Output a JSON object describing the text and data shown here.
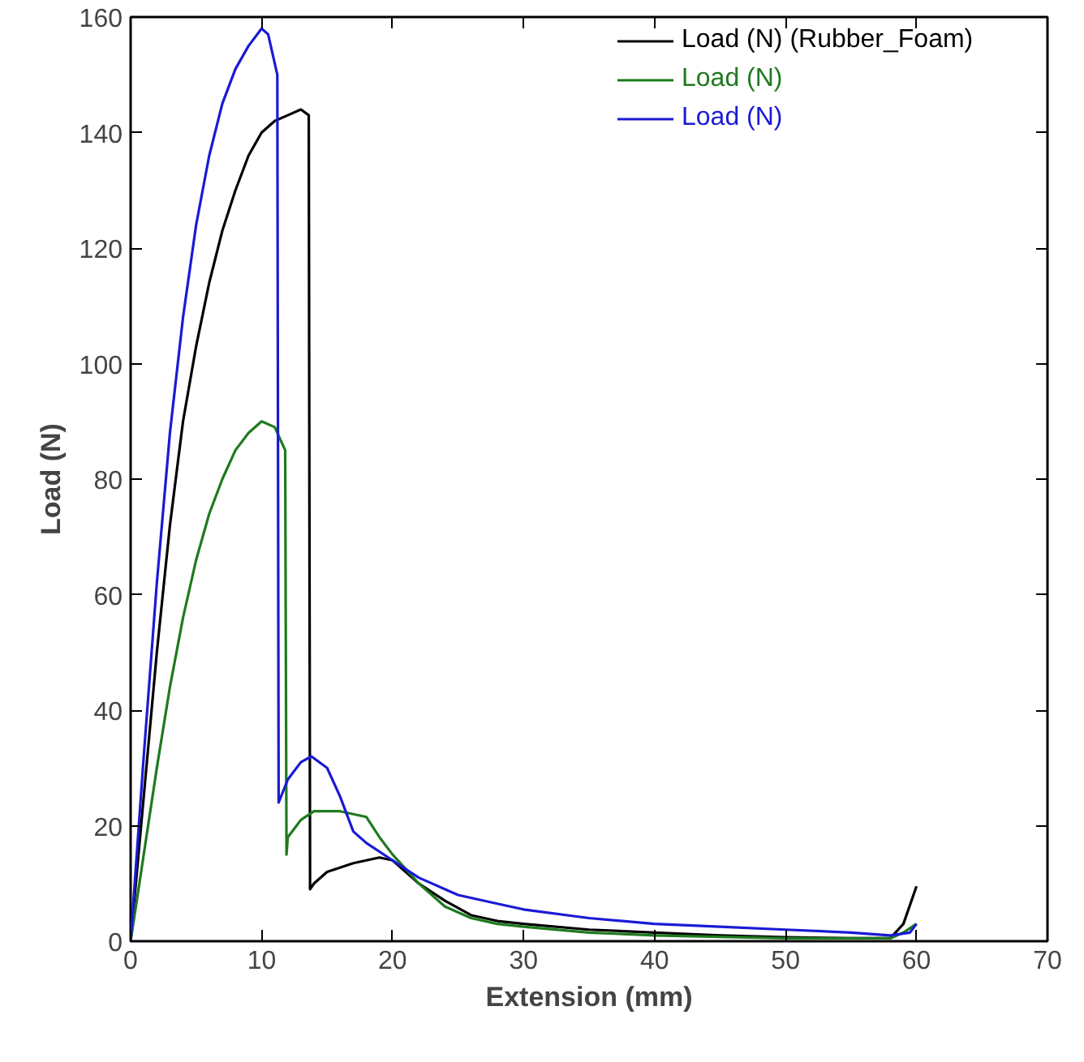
{
  "chart_data": {
    "type": "line",
    "xlabel": "Extension (mm)",
    "ylabel": "Load (N)",
    "xlim": [
      0,
      70
    ],
    "xticks": [
      0,
      10,
      20,
      30,
      40,
      50,
      60,
      70
    ],
    "ylim": [
      0,
      160
    ],
    "yticks": [
      0,
      20,
      40,
      60,
      80,
      100,
      120,
      140,
      160
    ],
    "grid": false,
    "legend": "top right",
    "marker": "none",
    "line_style": "solid",
    "series": [
      {
        "name": "Load (N) (Rubber_Foam)",
        "color": "#000000",
        "x": [
          0,
          1,
          2,
          3,
          4,
          5,
          6,
          7,
          8,
          9,
          10,
          11,
          12,
          13,
          13.6,
          13.7,
          14,
          15,
          17,
          19,
          20,
          22,
          24,
          26,
          28,
          30,
          35,
          40,
          45,
          50,
          55,
          58,
          59,
          60
        ],
        "values": [
          0,
          25,
          50,
          72,
          90,
          103,
          114,
          123,
          130,
          136,
          140,
          142,
          143,
          144,
          143,
          9,
          10,
          12,
          13.5,
          14.5,
          14,
          10,
          7,
          4.5,
          3.5,
          3,
          2,
          1.5,
          1,
          0.7,
          0.5,
          0.5,
          3,
          9.5
        ]
      },
      {
        "name": "Load (N)",
        "color": "#1e7a1e",
        "x": [
          0,
          1,
          2,
          3,
          4,
          5,
          6,
          7,
          8,
          9,
          10,
          11,
          11.8,
          11.9,
          12,
          13,
          14,
          16,
          18,
          19,
          20,
          22,
          24,
          26,
          28,
          30,
          35,
          40,
          50,
          58,
          59,
          60
        ],
        "values": [
          0,
          15,
          30,
          44,
          56,
          66,
          74,
          80,
          85,
          88,
          90,
          89,
          85,
          15,
          18,
          21,
          22.5,
          22.5,
          21.5,
          18,
          15,
          10,
          6,
          4,
          3,
          2.5,
          1.5,
          1,
          0.5,
          0.5,
          1.5,
          3
        ]
      },
      {
        "name": "Load (N)",
        "color": "#1a1ad6",
        "x": [
          0,
          1,
          2,
          3,
          4,
          5,
          6,
          7,
          8,
          9,
          10,
          10.5,
          11.2,
          11.3,
          12,
          13,
          13.8,
          15,
          16,
          17,
          18,
          20,
          22,
          25,
          28,
          30,
          35,
          40,
          45,
          50,
          55,
          58,
          59.5,
          60
        ],
        "values": [
          0,
          32,
          62,
          88,
          108,
          124,
          136,
          145,
          151,
          155,
          158,
          157,
          150,
          24,
          28,
          31,
          32,
          30,
          25,
          19,
          17,
          14,
          11,
          8,
          6.5,
          5.5,
          4,
          3,
          2.5,
          2,
          1.5,
          1,
          1.5,
          3
        ]
      }
    ]
  }
}
